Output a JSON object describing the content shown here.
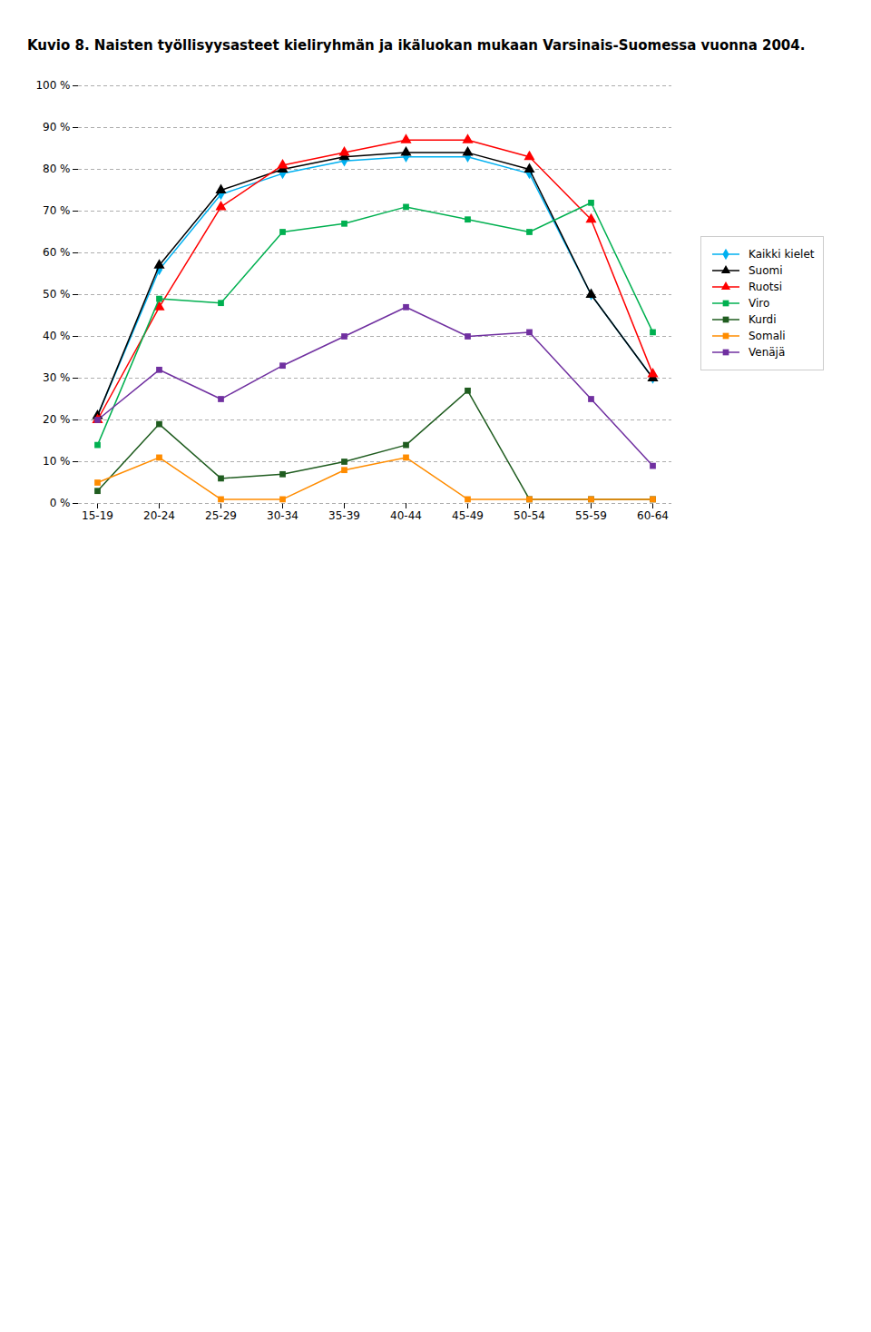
{
  "chart_data": {
    "type": "line",
    "title": "Kuvio 8. Naisten työllisyysasteet kieliryhmän ja ikäluokan mukaan Varsinais-Suomessa vuonna 2004.",
    "categories": [
      "15-19",
      "20-24",
      "25-29",
      "30-34",
      "35-39",
      "40-44",
      "45-49",
      "50-54",
      "55-59",
      "60-64"
    ],
    "series": [
      {
        "name": "Kaikki kielet",
        "color": "#00B0F0",
        "marker": "diamond",
        "values": [
          21,
          56,
          74,
          79,
          82,
          83,
          83,
          79,
          50,
          30
        ]
      },
      {
        "name": "Suomi",
        "color": "#000000",
        "marker": "triangle",
        "values": [
          21,
          57,
          75,
          80,
          83,
          84,
          84,
          80,
          50,
          30
        ]
      },
      {
        "name": "Ruotsi",
        "color": "#FF0000",
        "marker": "triangle",
        "values": [
          20,
          47,
          71,
          81,
          84,
          87,
          87,
          83,
          68,
          31
        ]
      },
      {
        "name": "Viro",
        "color": "#00B050",
        "marker": "square",
        "values": [
          14,
          49,
          48,
          65,
          67,
          71,
          68,
          65,
          72,
          41
        ]
      },
      {
        "name": "Kurdi",
        "color": "#1F5C1F",
        "marker": "square",
        "values": [
          3,
          19,
          6,
          7,
          10,
          14,
          27,
          1,
          1,
          1
        ]
      },
      {
        "name": "Somali",
        "color": "#FF8C00",
        "marker": "square",
        "values": [
          5,
          11,
          1,
          1,
          8,
          11,
          1,
          1,
          1,
          1
        ]
      },
      {
        "name": "Venäjä",
        "color": "#7030A0",
        "marker": "square",
        "values": [
          20,
          32,
          25,
          33,
          40,
          47,
          40,
          41,
          25,
          9
        ]
      }
    ],
    "ylim": [
      0,
      100
    ],
    "yticks": [
      {
        "value": 0,
        "label": "0 %"
      },
      {
        "value": 10,
        "label": "10 %"
      },
      {
        "value": 20,
        "label": "20 %"
      },
      {
        "value": 30,
        "label": "30 %"
      },
      {
        "value": 40,
        "label": "40 %"
      },
      {
        "value": 50,
        "label": "50 %"
      },
      {
        "value": 60,
        "label": "60 %"
      },
      {
        "value": 70,
        "label": "70 %"
      },
      {
        "value": 80,
        "label": "80 %"
      },
      {
        "value": 90,
        "label": "90 %"
      },
      {
        "value": 100,
        "label": "100 %"
      }
    ],
    "grid": true,
    "legend": "right"
  }
}
